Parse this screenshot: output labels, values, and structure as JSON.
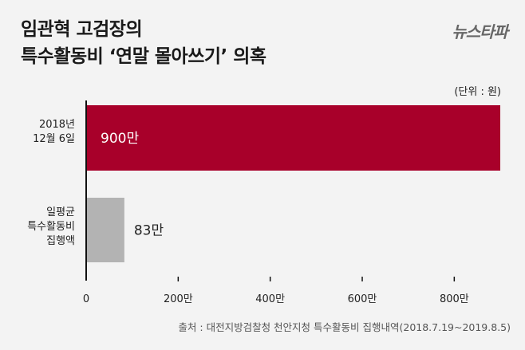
{
  "title": {
    "line1": "임관혁 고검장의",
    "line2": "특수활동비 ‘연말 몰아쓰기’ 의혹"
  },
  "logo": "뉴스타파",
  "unit": "(단위 : 원)",
  "source": "출처 : 대전지방검찰청 천안지청 특수활동비 집행내역(2018.7.19~2019.8.5)",
  "colors": {
    "primary_bar": "#a8002a",
    "secondary_bar": "#b3b3b3",
    "background": "#f3f3f3"
  },
  "chart_data": {
    "type": "bar",
    "orientation": "horizontal",
    "categories": [
      [
        "2018년",
        "12월 6일"
      ],
      [
        "일평균",
        "특수활동비",
        "집행액"
      ]
    ],
    "values": [
      900,
      83
    ],
    "value_labels": [
      "900만",
      "83만"
    ],
    "xlim": [
      0,
      900
    ],
    "xticks": [
      0,
      200,
      400,
      600,
      800
    ],
    "xtick_labels": [
      "0",
      "200만",
      "400만",
      "600만",
      "800만"
    ],
    "grid": false
  }
}
